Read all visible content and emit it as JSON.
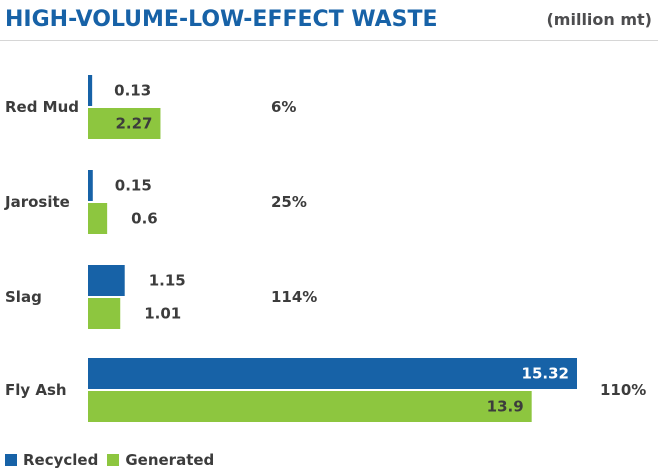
{
  "title": "HIGH-VOLUME-LOW-EFFECT WASTE",
  "unit": "(million mt)",
  "legend": {
    "recycled": "Recycled",
    "generated": "Generated"
  },
  "colors": {
    "recycled": "#1762a7",
    "generated": "#8dc63f",
    "text": "#3c3c3c",
    "inner_label": "#ffffff"
  },
  "chart_data": {
    "type": "bar",
    "orientation": "horizontal",
    "categories": [
      "Red Mud",
      "Jarosite",
      "Slag",
      "Fly Ash"
    ],
    "series": [
      {
        "name": "Recycled",
        "values": [
          0.13,
          0.15,
          1.15,
          15.32
        ],
        "labels": [
          "0.13",
          "0.15",
          "1.15",
          "15.32"
        ]
      },
      {
        "name": "Generated",
        "values": [
          2.27,
          0.6,
          1.01,
          13.9
        ],
        "labels": [
          "2.27",
          "0.6",
          "1.01",
          "13.9"
        ]
      }
    ],
    "percentages": [
      "6%",
      "25%",
      "114%",
      "110%"
    ],
    "xlim": [
      0,
      15.32
    ],
    "grid": false,
    "legend_position": "bottom-left"
  }
}
